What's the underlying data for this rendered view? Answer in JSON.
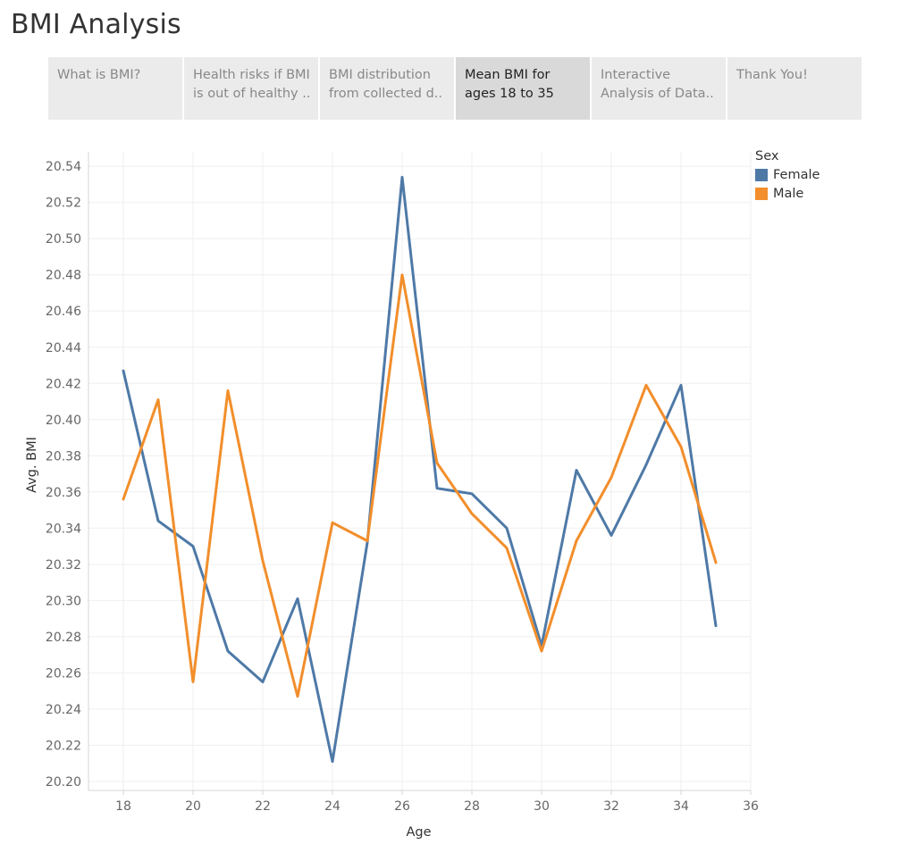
{
  "title": "BMI Analysis",
  "tabs": [
    {
      "lines": [
        "What is BMI?"
      ],
      "active": false
    },
    {
      "lines": [
        "Health risks if BMI",
        "is out of healthy .."
      ],
      "active": false
    },
    {
      "lines": [
        "BMI distribution",
        "from collected d.."
      ],
      "active": false
    },
    {
      "lines": [
        "Mean BMI for",
        "ages 18 to 35"
      ],
      "active": true
    },
    {
      "lines": [
        "Interactive",
        "Analysis of Data.."
      ],
      "active": false
    },
    {
      "lines": [
        "Thank You!"
      ],
      "active": false
    }
  ],
  "legend": {
    "title": "Sex",
    "items": [
      {
        "label": "Female",
        "color": "#4e79a7"
      },
      {
        "label": "Male",
        "color": "#f28e2b"
      }
    ]
  },
  "chart_data": {
    "type": "line",
    "xlabel": "Age",
    "ylabel": "Avg. BMI",
    "xlim": [
      17,
      36
    ],
    "ylim": [
      20.195,
      20.548
    ],
    "xticks": [
      18,
      20,
      22,
      24,
      26,
      28,
      30,
      32,
      34,
      36
    ],
    "yticks": [
      20.2,
      20.22,
      20.24,
      20.26,
      20.28,
      20.3,
      20.32,
      20.34,
      20.36,
      20.38,
      20.4,
      20.42,
      20.44,
      20.46,
      20.48,
      20.5,
      20.52,
      20.54
    ],
    "grid": true,
    "legend_position": "top-right",
    "x": [
      18,
      19,
      20,
      21,
      22,
      23,
      24,
      25,
      26,
      27,
      28,
      29,
      30,
      31,
      32,
      33,
      34,
      35
    ],
    "series": [
      {
        "name": "Female",
        "color": "#4e79a7",
        "values": [
          20.427,
          20.344,
          20.33,
          20.272,
          20.255,
          20.301,
          20.211,
          20.332,
          20.534,
          20.362,
          20.359,
          20.34,
          20.275,
          20.372,
          20.336,
          20.375,
          20.419,
          20.286
        ]
      },
      {
        "name": "Male",
        "color": "#f28e2b",
        "values": [
          20.356,
          20.411,
          20.255,
          20.416,
          20.322,
          20.247,
          20.343,
          20.333,
          20.48,
          20.376,
          20.348,
          20.329,
          20.272,
          20.333,
          20.368,
          20.419,
          20.385,
          20.321
        ]
      }
    ]
  }
}
